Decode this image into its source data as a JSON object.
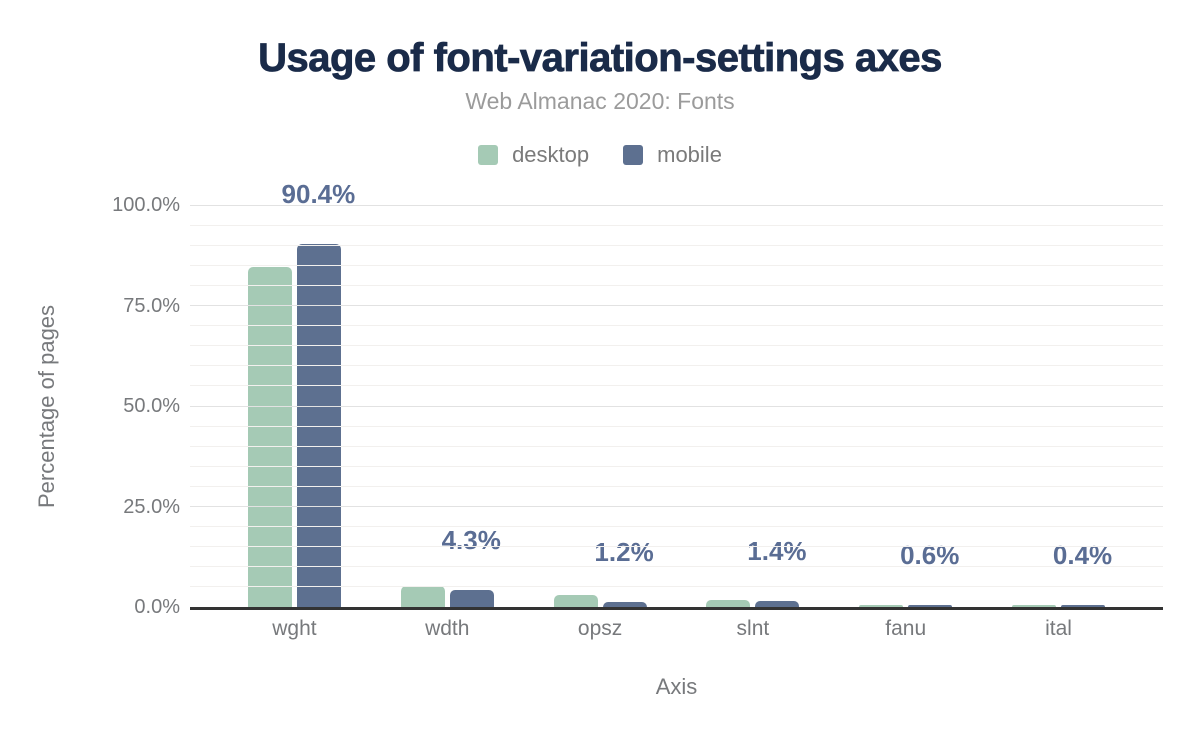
{
  "header": {
    "title": "Usage of font-variation-settings axes",
    "subtitle": "Web Almanac 2020: Fonts"
  },
  "legend": [
    {
      "label": "desktop",
      "color": "#a5cab5"
    },
    {
      "label": "mobile",
      "color": "#5d7090"
    }
  ],
  "chart_data": {
    "type": "bar",
    "title": "Usage of font-variation-settings axes",
    "subtitle": "Web Almanac 2020: Fonts",
    "categories": [
      "wght",
      "wdth",
      "opsz",
      "slnt",
      "fanu",
      "ital"
    ],
    "series": [
      {
        "name": "desktop",
        "color": "#a5cab5",
        "values": [
          84.7,
          5.3,
          3.0,
          1.7,
          0.5,
          0.4
        ]
      },
      {
        "name": "mobile",
        "color": "#5d7090",
        "values": [
          90.4,
          4.3,
          1.2,
          1.4,
          0.6,
          0.4
        ]
      }
    ],
    "data_labels": {
      "series": "mobile",
      "values": [
        "90.4%",
        "4.3%",
        "1.2%",
        "1.4%",
        "0.6%",
        "0.4%"
      ]
    },
    "xlabel": "Axis",
    "ylabel": "Percentage of pages",
    "ylim": [
      0,
      100
    ],
    "yticks": [
      {
        "pct": 0,
        "label": "0.0%"
      },
      {
        "pct": 25,
        "label": "25.0%"
      },
      {
        "pct": 50,
        "label": "50.0%"
      },
      {
        "pct": 75,
        "label": "75.0%"
      },
      {
        "pct": 100,
        "label": "100.0%"
      }
    ],
    "grid": {
      "on": true,
      "minor_every": 5,
      "major_every": 25
    },
    "legend_position": "top-center"
  },
  "colors": {
    "title": "#1a2b49",
    "subtitle": "#9b9b9b",
    "axis_text": "#77797c",
    "legend_text": "#7a7a7a",
    "data_label": "#5a6d94",
    "axis_line": "#333333",
    "grid_major": "#e2e2e2",
    "grid_minor": "#f2f0ee"
  }
}
